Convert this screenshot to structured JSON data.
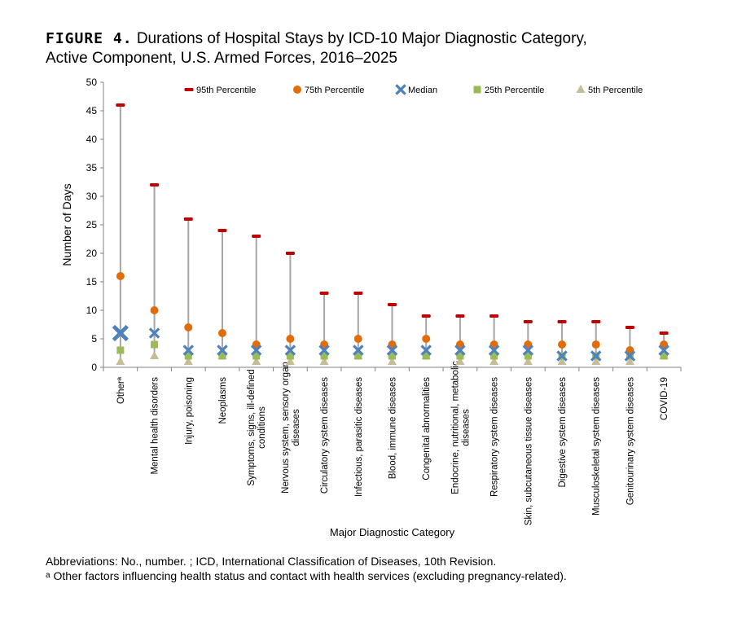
{
  "figure": {
    "label": "FIGURE 4.",
    "title_line1": "Durations of Hospital Stays by ICD-10 Major Diagnostic Category,",
    "title_line2": "Active Component, U.S. Armed Forces, 2016–2025"
  },
  "footnotes": {
    "abbreviations": "Abbreviations: No., number. ; ICD, International Classification of Diseases, 10th Revision.",
    "note_marker": "a",
    "note_text": "Other factors influencing health status and contact with health services (excluding pregnancy-related)."
  },
  "colors": {
    "p95": "#c00000",
    "p75": "#e36c0a",
    "median": "#4f81bd",
    "p25": "#9bbb59",
    "p5": "#c4bd97",
    "whisker": "#a6a6a6",
    "axis": "#808080"
  },
  "chart_data": {
    "type": "scatter",
    "xlabel": "Major Diagnostic Category",
    "ylabel": "Number of Days",
    "ylim": [
      0,
      50
    ],
    "yticks": [
      0,
      5,
      10,
      15,
      20,
      25,
      30,
      35,
      40,
      45,
      50
    ],
    "grid": false,
    "legend_position": "top",
    "categories": [
      [
        "Otherª"
      ],
      [
        "Mental health disorders"
      ],
      [
        "Injury, poisoning"
      ],
      [
        "Neoplasms"
      ],
      [
        "Symptoms, signs, ill-defined",
        "conditions"
      ],
      [
        "Nervous system, sensory organ",
        "diseases"
      ],
      [
        "Circulatory system diseases"
      ],
      [
        "Infectious, parasitic diseases"
      ],
      [
        "Blood, immune diseases"
      ],
      [
        "Congenital abnormalities"
      ],
      [
        "Endocrine, nutritional, metabolic",
        "diseases"
      ],
      [
        "Respiratory system diseases"
      ],
      [
        "Skin, subcutaneous tissue diseases"
      ],
      [
        "Digestive system diseases"
      ],
      [
        "Musculoskeletal system diseases"
      ],
      [
        "Genitourinary system diseases"
      ],
      [
        "COVID-19"
      ]
    ],
    "series": [
      {
        "name": "95th Percentile",
        "marker": "dash",
        "values": [
          46,
          32,
          26,
          24,
          23,
          20,
          13,
          13,
          11,
          9,
          9,
          9,
          8,
          8,
          8,
          7,
          6
        ]
      },
      {
        "name": "75th Percentile",
        "marker": "circle",
        "values": [
          16,
          10,
          7,
          6,
          4,
          5,
          4,
          5,
          4,
          5,
          4,
          4,
          4,
          4,
          4,
          3,
          4
        ]
      },
      {
        "name": "Median",
        "marker": "x",
        "values": [
          6,
          6,
          3,
          3,
          3,
          3,
          3,
          3,
          3,
          3,
          3,
          3,
          3,
          2,
          2,
          2,
          3
        ]
      },
      {
        "name": "25th Percentile",
        "marker": "square",
        "values": [
          3,
          4,
          2,
          2,
          2,
          2,
          2,
          2,
          2,
          2,
          2,
          2,
          2,
          2,
          2,
          2,
          2
        ]
      },
      {
        "name": "5th Percentile",
        "marker": "triangle",
        "values": [
          1,
          2,
          1,
          2,
          1,
          1,
          1,
          2,
          1,
          2,
          1,
          1,
          1,
          1,
          1,
          1,
          2
        ]
      }
    ]
  }
}
